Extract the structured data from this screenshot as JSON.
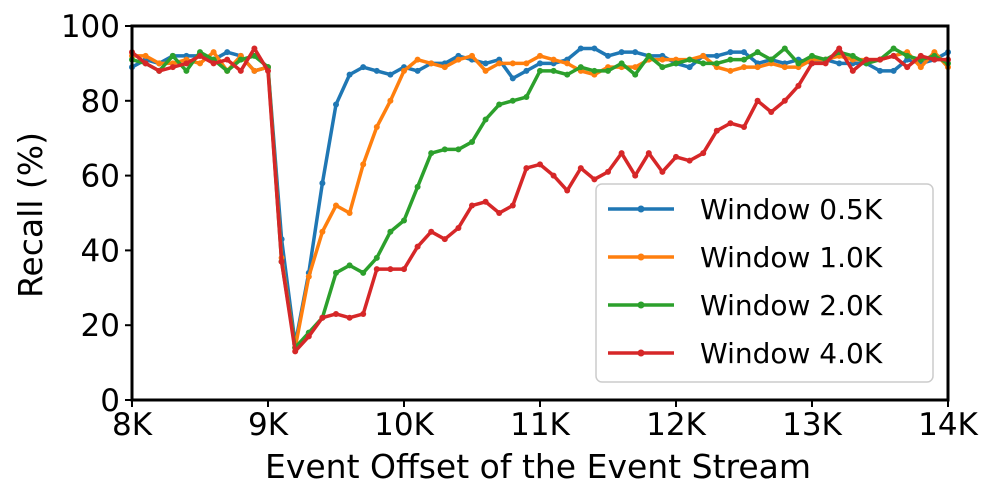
{
  "chart_data": {
    "type": "line",
    "xlabel": "Event Offset of the Event Stream",
    "ylabel": "Recall (%)",
    "xlim": [
      8000,
      14000
    ],
    "ylim": [
      0,
      100
    ],
    "xticks": [
      8000,
      9000,
      10000,
      11000,
      12000,
      13000,
      14000
    ],
    "xtick_labels": [
      "8K",
      "9K",
      "10K",
      "11K",
      "12K",
      "13K",
      "14K"
    ],
    "yticks": [
      0,
      20,
      40,
      60,
      80,
      100
    ],
    "ytick_labels": [
      "0",
      "20",
      "40",
      "60",
      "80",
      "100"
    ],
    "grid": false,
    "legend_position": "lower-right",
    "x": [
      8000,
      8100,
      8200,
      8300,
      8400,
      8500,
      8600,
      8700,
      8800,
      8900,
      9000,
      9100,
      9200,
      9300,
      9400,
      9500,
      9600,
      9700,
      9800,
      9900,
      10000,
      10100,
      10200,
      10300,
      10400,
      10500,
      10600,
      10700,
      10800,
      10900,
      11000,
      11100,
      11200,
      11300,
      11400,
      11500,
      11600,
      11700,
      11800,
      11900,
      12000,
      12100,
      12200,
      12300,
      12400,
      12500,
      12600,
      12700,
      12800,
      12900,
      13000,
      13100,
      13200,
      13300,
      13400,
      13500,
      13600,
      13700,
      13800,
      13900,
      14000
    ],
    "series": [
      {
        "name": "Window 0.5K",
        "color": "#1f77b4",
        "values": [
          89,
          91,
          90,
          92,
          92,
          92,
          91,
          93,
          92,
          88,
          89,
          43,
          15,
          34,
          58,
          79,
          87,
          89,
          88,
          87,
          89,
          88,
          90,
          90,
          92,
          91,
          90,
          91,
          86,
          88,
          90,
          90,
          91,
          94,
          94,
          92,
          93,
          93,
          92,
          92,
          90,
          89,
          92,
          92,
          93,
          93,
          90,
          91,
          90,
          91,
          90,
          91,
          90,
          90,
          90,
          88,
          88,
          91,
          90,
          91,
          93
        ]
      },
      {
        "name": "Window 1.0K",
        "color": "#ff7f0e",
        "values": [
          92,
          92,
          90,
          90,
          91,
          90,
          93,
          88,
          92,
          88,
          89,
          38,
          14,
          33,
          45,
          52,
          50,
          63,
          73,
          80,
          88,
          91,
          90,
          89,
          91,
          92,
          88,
          90,
          90,
          90,
          92,
          91,
          90,
          88,
          87,
          89,
          89,
          89,
          91,
          91,
          91,
          91,
          92,
          89,
          88,
          89,
          89,
          90,
          89,
          89,
          91,
          91,
          92,
          91,
          91,
          91,
          92,
          93,
          89,
          93,
          89
        ]
      },
      {
        "name": "Window 2.0K",
        "color": "#2ca02c",
        "values": [
          91,
          90,
          88,
          92,
          88,
          93,
          91,
          88,
          91,
          92,
          89,
          37,
          14,
          18,
          22,
          34,
          36,
          34,
          38,
          45,
          48,
          57,
          66,
          67,
          67,
          69,
          75,
          79,
          80,
          81,
          88,
          88,
          87,
          89,
          88,
          88,
          90,
          87,
          92,
          89,
          90,
          91,
          90,
          90,
          91,
          91,
          93,
          91,
          94,
          90,
          92,
          91,
          93,
          92,
          90,
          91,
          94,
          92,
          91,
          92,
          90
        ]
      },
      {
        "name": "Window 4.0K",
        "color": "#d62728",
        "values": [
          93,
          90,
          88,
          89,
          90,
          92,
          90,
          91,
          88,
          94,
          88,
          37,
          13,
          17,
          22,
          23,
          22,
          23,
          35,
          35,
          35,
          41,
          45,
          43,
          46,
          52,
          53,
          50,
          52,
          62,
          63,
          60,
          56,
          62,
          59,
          61,
          66,
          60,
          66,
          61,
          65,
          64,
          66,
          72,
          74,
          73,
          80,
          77,
          80,
          84,
          90,
          90,
          94,
          88,
          91,
          91,
          92,
          89,
          92,
          91,
          91
        ]
      }
    ]
  }
}
